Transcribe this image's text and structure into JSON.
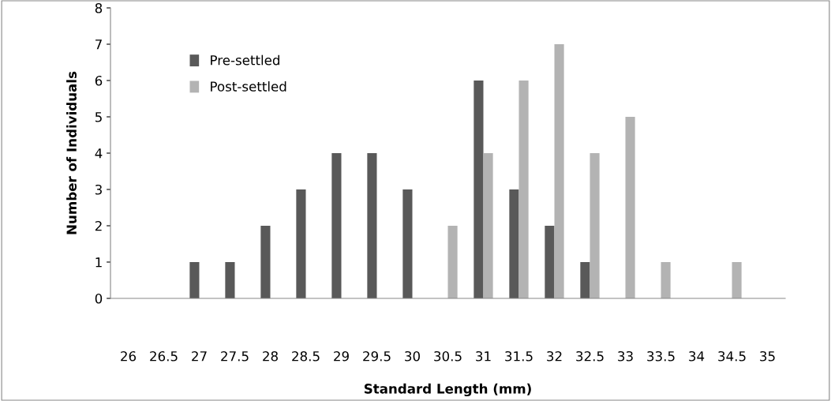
{
  "chart_data": {
    "type": "bar",
    "xlabel": "Standard Length (mm)",
    "ylabel": "Number of Individuals",
    "categories": [
      "26",
      "26.5",
      "27",
      "27.5",
      "28",
      "28.5",
      "29",
      "29.5",
      "30",
      "30.5",
      "31",
      "31.5",
      "32",
      "32.5",
      "33",
      "33.5",
      "34",
      "34.5",
      "35"
    ],
    "series": [
      {
        "name": "Pre-settled",
        "color": "#595959",
        "values": [
          0,
          0,
          1,
          1,
          2,
          3,
          4,
          4,
          3,
          0,
          6,
          3,
          2,
          1,
          0,
          0,
          0,
          0,
          0
        ]
      },
      {
        "name": "Post-settled",
        "color": "#b3b3b3",
        "values": [
          0,
          0,
          0,
          0,
          0,
          0,
          0,
          0,
          0,
          2,
          4,
          6,
          7,
          4,
          5,
          1,
          0,
          1,
          0
        ]
      }
    ],
    "ylim": [
      0,
      8
    ],
    "yticks": [
      0,
      1,
      2,
      3,
      4,
      5,
      6,
      7,
      8
    ],
    "grid": false,
    "legend": "top left"
  }
}
